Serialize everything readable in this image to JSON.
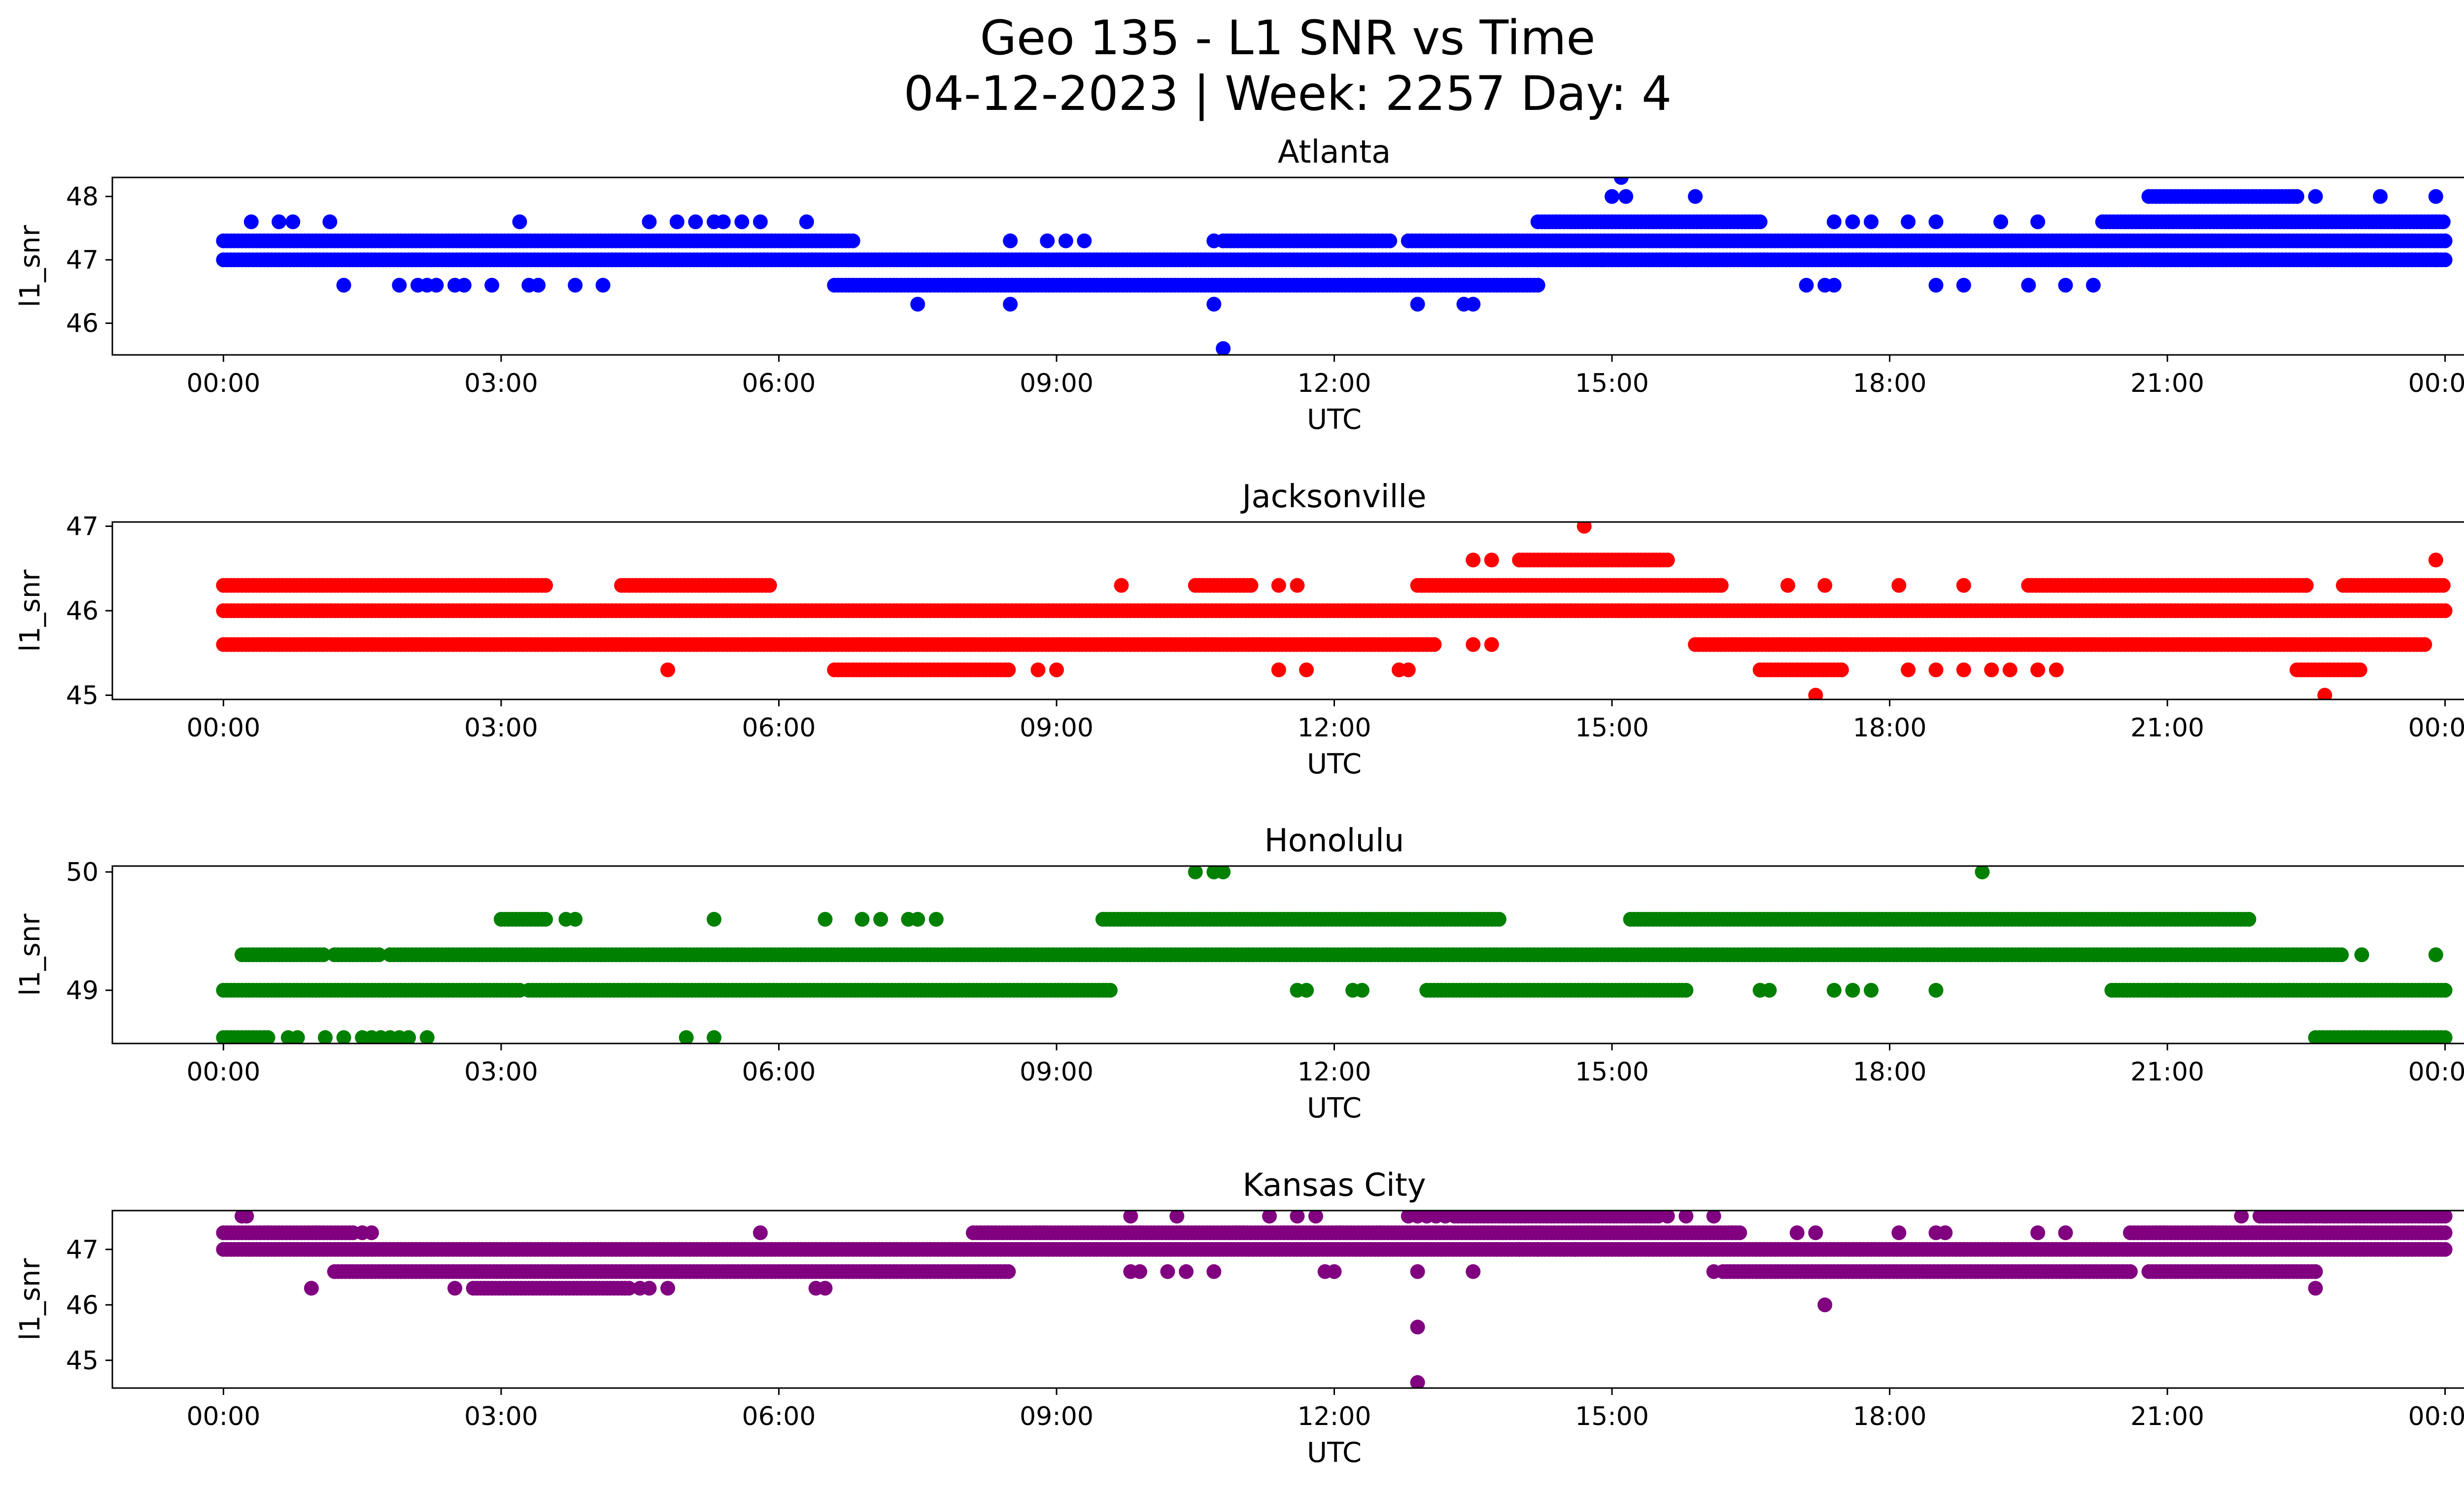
{
  "chart_data": {
    "type": "scatter",
    "title_lines": [
      "Geo 135 - L1 SNR vs Time",
      "04-12-2023 | Week: 2257 Day: 4"
    ],
    "x_tick_labels": [
      "00:00",
      "03:00",
      "06:00",
      "09:00",
      "12:00",
      "15:00",
      "18:00",
      "21:00",
      "00:00"
    ],
    "x_tick_hours": [
      0,
      3,
      6,
      9,
      12,
      15,
      18,
      21,
      24
    ],
    "xlim_hours": [
      -1.2,
      25.2
    ],
    "panels": [
      {
        "title": "Atlanta",
        "xlabel": "UTC",
        "ylabel": "l1_snr",
        "color": "#0000ff",
        "ylim": [
          45.5,
          48.3
        ],
        "yticks": [
          46,
          47,
          48
        ],
        "bands": [
          {
            "y": 47.0,
            "segments": [
              [
                0,
                14.2
              ],
              [
                14.2,
                24
              ]
            ]
          },
          {
            "y": 47.3,
            "segments": [
              [
                0,
                6.8
              ],
              [
                10.8,
                12.6
              ],
              [
                12.8,
                24
              ]
            ]
          },
          {
            "y": 46.6,
            "segments": [
              [
                6.6,
                14.2
              ]
            ]
          },
          {
            "y": 47.6,
            "segments": [
              [
                14.2,
                16.6
              ],
              [
                20.3,
                24
              ]
            ]
          },
          {
            "y": 48.0,
            "segments": [
              [
                20.8,
                22.4
              ]
            ]
          }
        ],
        "points": [
          {
            "y": 47.6,
            "x": [
              0.3,
              0.6,
              0.75,
              1.15,
              3.2,
              4.6,
              4.9,
              5.1,
              5.3,
              5.4,
              5.6,
              5.8,
              6.3,
              17.4,
              17.6,
              17.8,
              18.2,
              18.5,
              19.2,
              19.6,
              22.9,
              23.3
            ]
          },
          {
            "y": 46.6,
            "x": [
              1.3,
              1.9,
              2.1,
              2.2,
              2.3,
              2.5,
              2.6,
              2.9,
              3.3,
              3.4,
              3.8,
              4.1,
              17.1,
              17.3,
              17.4,
              18.5,
              18.8,
              19.5,
              19.9,
              20.2
            ]
          },
          {
            "y": 46.3,
            "x": [
              7.5,
              8.5,
              10.7,
              12.9,
              13.4,
              13.5
            ]
          },
          {
            "y": 47.3,
            "x": [
              8.5,
              8.9,
              9.1,
              9.3,
              10.7
            ]
          },
          {
            "y": 45.6,
            "x": [
              10.8
            ]
          },
          {
            "y": 48.3,
            "x": [
              15.1
            ]
          },
          {
            "y": 48.0,
            "x": [
              15.0,
              15.15,
              15.9,
              22.6,
              23.3,
              23.9
            ]
          },
          {
            "y": 47.0,
            "x": [
              14.9,
              15.8,
              23.9
            ]
          }
        ]
      },
      {
        "title": "Jacksonville",
        "xlabel": "UTC",
        "ylabel": "l1_snr",
        "color": "#ff0000",
        "ylim": [
          44.95,
          47.05
        ],
        "yticks": [
          45,
          46,
          47
        ],
        "bands": [
          {
            "y": 46.0,
            "segments": [
              [
                0,
                24
              ]
            ]
          },
          {
            "y": 46.3,
            "segments": [
              [
                0,
                3.5
              ],
              [
                4.3,
                5.9
              ],
              [
                10.5,
                11.1
              ],
              [
                12.9,
                16.2
              ],
              [
                19.5,
                22.5
              ],
              [
                22.9,
                24
              ]
            ]
          },
          {
            "y": 45.6,
            "segments": [
              [
                0,
                10.6
              ],
              [
                10.6,
                13.1
              ],
              [
                15.9,
                23.8
              ]
            ]
          },
          {
            "y": 46.6,
            "segments": [
              [
                14.0,
                15.6
              ]
            ]
          },
          {
            "y": 45.3,
            "segments": [
              [
                6.6,
                8.5
              ],
              [
                16.6,
                17.5
              ],
              [
                22.4,
                23.1
              ]
            ]
          }
        ],
        "points": [
          {
            "y": 46.3,
            "x": [
              9.7,
              11.4,
              11.6,
              16.9,
              17.3,
              18.1,
              18.8,
              22.5
            ]
          },
          {
            "y": 46.6,
            "x": [
              13.5,
              13.7,
              23.9
            ]
          },
          {
            "y": 45.3,
            "x": [
              4.8,
              8.8,
              9.0,
              11.4,
              11.7,
              12.7,
              12.8,
              18.2,
              18.5,
              18.8,
              19.1,
              19.3,
              19.6,
              19.8
            ]
          },
          {
            "y": 45.6,
            "x": [
              13.5,
              13.7
            ]
          },
          {
            "y": 47.0,
            "x": [
              14.7
            ]
          },
          {
            "y": 45.0,
            "x": [
              17.2,
              22.7
            ]
          }
        ]
      },
      {
        "title": "Honolulu",
        "xlabel": "UTC",
        "ylabel": "l1_snr",
        "color": "#008000",
        "ylim": [
          48.55,
          50.05
        ],
        "yticks": [
          49,
          50
        ],
        "bands": [
          {
            "y": 49.0,
            "segments": [
              [
                0,
                3.2
              ],
              [
                3.3,
                9.6
              ],
              [
                13.0,
                15.8
              ],
              [
                20.4,
                24
              ]
            ]
          },
          {
            "y": 49.3,
            "segments": [
              [
                0.2,
                1.1
              ],
              [
                1.2,
                1.7
              ],
              [
                1.8,
                22.9
              ]
            ]
          },
          {
            "y": 49.6,
            "segments": [
              [
                3.0,
                3.5
              ],
              [
                9.5,
                13.8
              ],
              [
                15.2,
                21.9
              ]
            ]
          },
          {
            "y": 48.6,
            "segments": [
              [
                0,
                0.5
              ],
              [
                22.6,
                24
              ]
            ]
          }
        ],
        "points": [
          {
            "y": 49.6,
            "x": [
              3.7,
              3.8,
              5.3,
              6.5,
              6.9,
              7.1,
              7.4,
              7.5,
              7.7
            ]
          },
          {
            "y": 48.6,
            "x": [
              0.7,
              0.8,
              1.1,
              1.3,
              1.5,
              1.6,
              1.7,
              1.8,
              1.9,
              2.0,
              2.2,
              5.0,
              5.3
            ]
          },
          {
            "y": 49.0,
            "x": [
              11.6,
              11.7,
              12.2,
              12.3,
              16.6,
              16.7,
              17.4,
              17.6,
              17.8,
              18.5,
              21.0,
              21.1
            ]
          },
          {
            "y": 50.0,
            "x": [
              10.5,
              10.7,
              10.8,
              19.0
            ]
          },
          {
            "y": 49.3,
            "x": [
              23.1,
              23.9
            ]
          }
        ]
      },
      {
        "title": "Kansas City",
        "xlabel": "UTC",
        "ylabel": "l1_snr",
        "color": "#800080",
        "ylim": [
          44.5,
          47.7
        ],
        "yticks": [
          45,
          46,
          47
        ],
        "bands": [
          {
            "y": 47.0,
            "segments": [
              [
                0,
                24
              ]
            ]
          },
          {
            "y": 47.3,
            "segments": [
              [
                0,
                1.4
              ],
              [
                8.1,
                16.4
              ],
              [
                20.6,
                24
              ]
            ]
          },
          {
            "y": 46.6,
            "segments": [
              [
                1.2,
                8.5
              ],
              [
                16.2,
                20.6
              ],
              [
                20.8,
                22.6
              ]
            ]
          },
          {
            "y": 46.3,
            "segments": [
              [
                2.7,
                4.4
              ]
            ]
          },
          {
            "y": 47.6,
            "segments": [
              [
                13.3,
                15.5
              ],
              [
                22.0,
                24
              ]
            ]
          }
        ],
        "points": [
          {
            "y": 47.6,
            "x": [
              0.2,
              0.25,
              9.8,
              10.3,
              11.3,
              11.6,
              11.8,
              12.8,
              12.9,
              13.0,
              13.1,
              13.2,
              15.6,
              15.8,
              16.1,
              21.8,
              22.3,
              22.5,
              22.7
            ]
          },
          {
            "y": 47.3,
            "x": [
              1.5,
              1.6,
              5.8,
              17.0,
              17.2,
              18.1,
              18.5,
              18.6,
              19.6,
              19.9
            ]
          },
          {
            "y": 46.3,
            "x": [
              0.95,
              2.5,
              4.5,
              4.6,
              4.8,
              6.4,
              6.5,
              22.6
            ]
          },
          {
            "y": 46.6,
            "x": [
              9.8,
              9.9,
              10.2,
              10.4,
              10.7,
              11.9,
              12.0,
              12.9,
              13.5,
              16.1,
              22.6
            ]
          },
          {
            "y": 46.0,
            "x": [
              17.3
            ]
          },
          {
            "y": 45.6,
            "x": [
              12.9
            ]
          },
          {
            "y": 44.6,
            "x": [
              12.9
            ]
          },
          {
            "y": 47.0,
            "x": [
              14.0,
              14.2,
              14.6
            ]
          }
        ]
      }
    ]
  }
}
